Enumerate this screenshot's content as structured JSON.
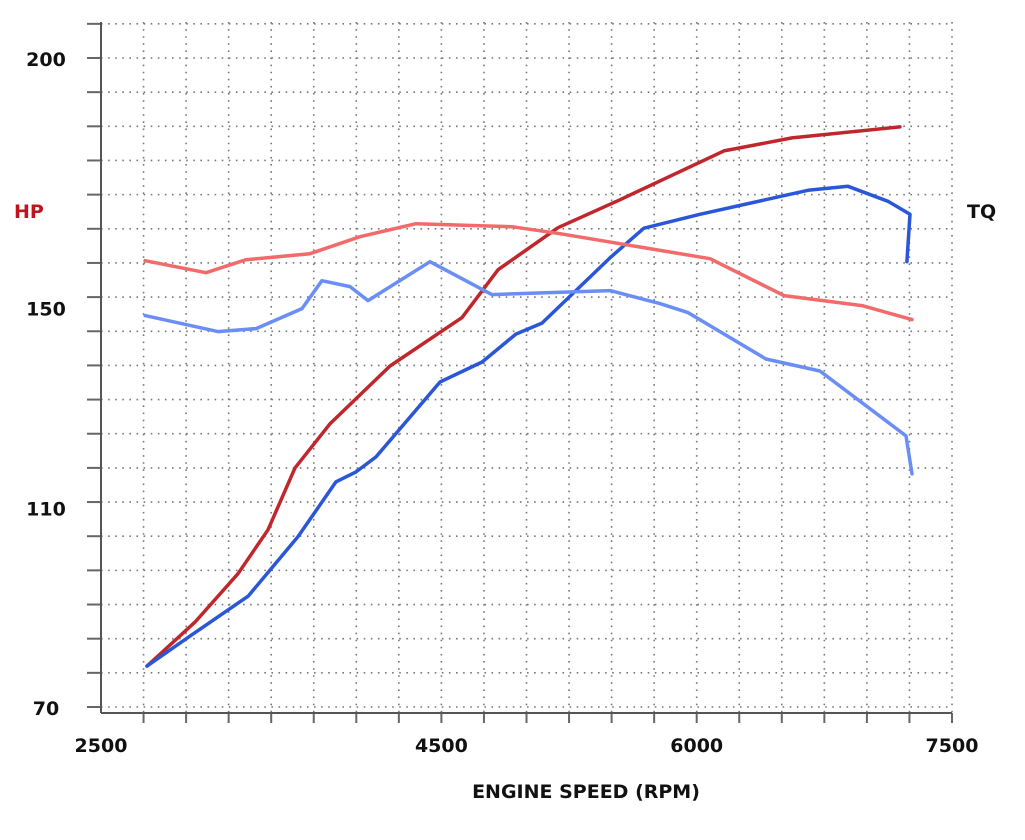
{
  "chart_data": {
    "type": "line",
    "title": "",
    "xlabel": "ENGINE SPEED (RPM)",
    "ylabel_left": "HP",
    "ylabel_right": "TQ",
    "xlim": [
      2500,
      7500
    ],
    "ylim": [
      70,
      200
    ],
    "x_ticks": [
      2500,
      4500,
      6000,
      7500
    ],
    "y_ticks": [
      70,
      110,
      150,
      200
    ],
    "grid": true,
    "colors": {
      "hp_label": "#c0141e",
      "tq_label": "#111111"
    },
    "series": [
      {
        "color": "#c0272d",
        "points": [
          [
            2770,
            78.2
          ],
          [
            3052,
            87.0
          ],
          [
            3305,
            96.7
          ],
          [
            3481,
            105.5
          ],
          [
            3640,
            117.9
          ],
          [
            3845,
            126.7
          ],
          [
            4198,
            138.3
          ],
          [
            4621,
            148.0
          ],
          [
            4833,
            157.6
          ],
          [
            5185,
            166.0
          ],
          [
            5549,
            171.6
          ],
          [
            6160,
            181.4
          ],
          [
            6560,
            184.0
          ],
          [
            7194,
            186.2
          ]
        ]
      },
      {
        "color": "#2a56d8",
        "points": [
          [
            2770,
            78.2
          ],
          [
            3023,
            84.2
          ],
          [
            3364,
            92.2
          ],
          [
            3657,
            104.1
          ],
          [
            3881,
            115.1
          ],
          [
            3998,
            117.1
          ],
          [
            4116,
            120.1
          ],
          [
            4492,
            135.1
          ],
          [
            4739,
            139.1
          ],
          [
            4938,
            144.7
          ],
          [
            5091,
            146.9
          ],
          [
            5491,
            160.0
          ],
          [
            5690,
            165.9
          ],
          [
            6019,
            168.7
          ],
          [
            6654,
            173.5
          ],
          [
            6889,
            174.3
          ],
          [
            7124,
            171.3
          ],
          [
            7253,
            168.7
          ],
          [
            7235,
            159.2
          ]
        ]
      },
      {
        "color": "#f26a6a",
        "points": [
          [
            2759,
            159.4
          ],
          [
            3117,
            157.0
          ],
          [
            3352,
            159.6
          ],
          [
            3728,
            160.8
          ],
          [
            4022,
            164.2
          ],
          [
            4351,
            166.8
          ],
          [
            4915,
            166.2
          ],
          [
            5197,
            164.8
          ],
          [
            6078,
            159.8
          ],
          [
            6513,
            152.4
          ],
          [
            6971,
            150.4
          ],
          [
            7265,
            147.6
          ]
        ]
      },
      {
        "color": "#6a8ef5",
        "points": [
          [
            2759,
            148.4
          ],
          [
            3187,
            145.2
          ],
          [
            3411,
            145.8
          ],
          [
            3681,
            149.8
          ],
          [
            3798,
            155.4
          ],
          [
            3963,
            154.2
          ],
          [
            4069,
            151.4
          ],
          [
            4433,
            159.2
          ],
          [
            4797,
            152.6
          ],
          [
            5491,
            153.4
          ],
          [
            5784,
            150.8
          ],
          [
            5949,
            149.0
          ],
          [
            6407,
            139.7
          ],
          [
            6724,
            137.3
          ],
          [
            7230,
            124.3
          ],
          [
            7265,
            116.7
          ]
        ]
      }
    ]
  }
}
